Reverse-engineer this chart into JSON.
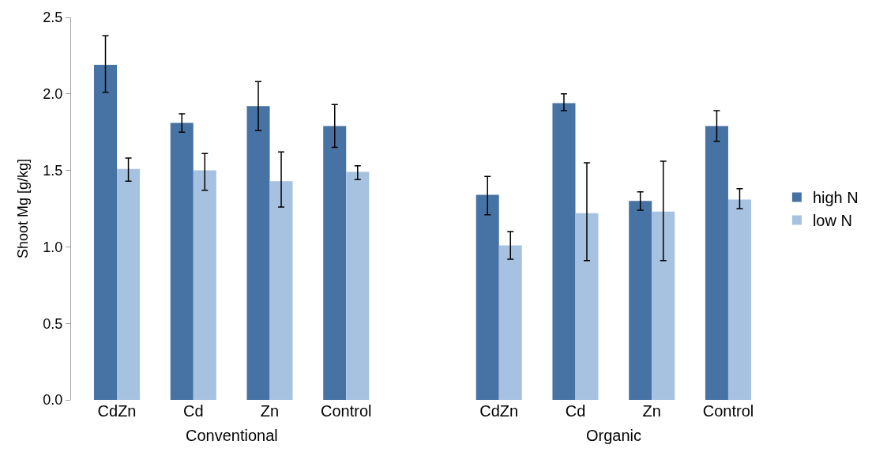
{
  "chart_data": {
    "type": "bar",
    "ylabel": "Shoot Mg [g/kg]",
    "categories": [
      "CdZn",
      "Cd",
      "Zn",
      "Control",
      null,
      "CdZn",
      "Cd",
      "Zn",
      "Control"
    ],
    "series": [
      {
        "name": "high N",
        "color": "#4672a4",
        "values": [
          2.19,
          1.81,
          1.92,
          1.79,
          null,
          1.34,
          1.94,
          1.3,
          1.79
        ],
        "errors": [
          [
            2.01,
            2.38
          ],
          [
            1.75,
            1.87
          ],
          [
            1.76,
            2.08
          ],
          [
            1.65,
            1.93
          ],
          null,
          [
            1.21,
            1.46
          ],
          [
            1.89,
            2.0
          ],
          [
            1.24,
            1.36
          ],
          [
            1.69,
            1.89
          ]
        ]
      },
      {
        "name": "low N",
        "color": "#a7c1e0",
        "values": [
          1.51,
          1.5,
          1.43,
          1.49,
          null,
          1.01,
          1.22,
          1.23,
          1.31
        ],
        "errors": [
          [
            1.43,
            1.58
          ],
          [
            1.37,
            1.61
          ],
          [
            1.26,
            1.62
          ],
          [
            1.44,
            1.53
          ],
          null,
          [
            0.92,
            1.1
          ],
          [
            0.91,
            1.55
          ],
          [
            0.91,
            1.56
          ],
          [
            1.25,
            1.38
          ]
        ]
      }
    ],
    "annotations": [
      "Conventional",
      "Organic"
    ],
    "ylim": [
      0,
      2.5
    ],
    "yticks": [
      {
        "value": 0,
        "label": "0.0"
      },
      {
        "value": 0.5,
        "label": "0.5"
      },
      {
        "value": 1,
        "label": "1.0"
      },
      {
        "value": 1.5,
        "label": "1.5"
      },
      {
        "value": 2,
        "label": "2.0"
      },
      {
        "value": 2.5,
        "label": "2.5"
      }
    ],
    "legend": "right"
  }
}
